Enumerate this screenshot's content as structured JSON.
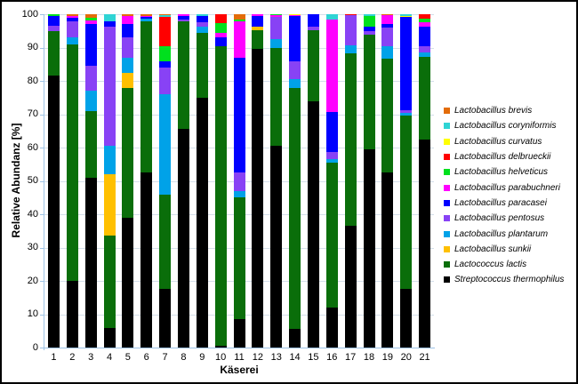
{
  "figure": {
    "ylabel": "Relative Abundanz [%]",
    "xlabel": "Käserei"
  },
  "style": {
    "background": "#FFFFFF",
    "frame_border": "#000000",
    "grid_color": "#D4DFE9",
    "axis_color": "#9DC3E6",
    "text_color": "#000000"
  },
  "chart_data": {
    "type": "bar",
    "stacked": true,
    "title": "",
    "xlabel": "Käserei",
    "ylabel": "Relative Abundanz [%]",
    "ylim": [
      0,
      100
    ],
    "y_ticks": [
      0,
      10,
      20,
      30,
      40,
      50,
      60,
      70,
      80,
      90,
      100
    ],
    "grid": "horizontal",
    "legend_position": "right",
    "categories": [
      "1",
      "2",
      "3",
      "4",
      "5",
      "6",
      "7",
      "8",
      "9",
      "10",
      "11",
      "12",
      "13",
      "14",
      "15",
      "16",
      "17",
      "18",
      "19",
      "20",
      "21"
    ],
    "stack_note": "series listed in legend order (top of stack first); bars stack bottom-to-top in reverse of this list",
    "series": [
      {
        "name": "Lactobacillus brevis",
        "color": "#E36C09",
        "values": [
          0,
          0.5,
          1,
          0,
          0.4,
          0.4,
          0.3,
          0,
          0,
          0,
          1.5,
          0,
          0,
          0,
          0,
          0,
          0,
          0,
          0.3,
          0,
          0
        ]
      },
      {
        "name": "Lactobacillus coryniformis",
        "color": "#2FD4D4",
        "values": [
          0,
          0,
          0,
          2,
          0,
          0,
          0.4,
          0,
          0.5,
          0,
          0,
          0,
          0,
          0,
          0,
          1.5,
          0,
          0.5,
          0,
          0.4,
          0
        ]
      },
      {
        "name": "Lactobacillus curvatus",
        "color": "#FFFF00",
        "values": [
          0,
          0,
          0,
          0,
          0,
          0,
          0,
          0,
          0,
          0,
          0,
          0,
          0,
          0.3,
          0,
          0,
          0,
          0,
          0,
          0.4,
          0
        ]
      },
      {
        "name": "Lactobacillus delbrueckii",
        "color": "#FF0000",
        "values": [
          0,
          0,
          0,
          0,
          0,
          0,
          8.9,
          0,
          0,
          2.6,
          0,
          0,
          0,
          0,
          0,
          0,
          0.3,
          0,
          0,
          0,
          1.2
        ]
      },
      {
        "name": "Lactobacillus helveticus",
        "color": "#00E01E",
        "values": [
          0.5,
          0,
          0.8,
          0,
          0,
          0,
          4.4,
          0,
          0,
          3,
          0.5,
          0,
          0.3,
          0,
          0,
          0,
          0,
          3.3,
          0,
          0,
          1.3
        ]
      },
      {
        "name": "Lactobacillus parabuchneri",
        "color": "#FF00FF",
        "values": [
          0,
          0.5,
          1,
          0,
          2.6,
          0.3,
          0,
          0.5,
          0,
          1.4,
          11,
          0.4,
          0.4,
          0.3,
          0,
          27.7,
          0,
          0,
          2.6,
          0,
          1.1
        ]
      },
      {
        "name": "Lactobacillus paracasei",
        "color": "#0000FF",
        "values": [
          3,
          1,
          12.7,
          1.6,
          4,
          0.6,
          2,
          1,
          2,
          2.5,
          34.5,
          3.4,
          0,
          13.4,
          3.8,
          12,
          0,
          1.3,
          1.2,
          27.9,
          6
        ]
      },
      {
        "name": "Lactobacillus pentosus",
        "color": "#8842F5",
        "values": [
          1.5,
          5,
          7.5,
          35.9,
          6,
          0,
          8,
          0.5,
          1.1,
          0,
          5.5,
          0,
          6.8,
          5.4,
          0.9,
          2.3,
          8.9,
          0.9,
          5.5,
          0.9,
          1.8
        ]
      },
      {
        "name": "Lactobacillus plantarum",
        "color": "#00A2E8",
        "values": [
          0,
          2,
          6,
          8.5,
          4.5,
          0.8,
          30,
          0,
          2,
          0,
          2,
          0,
          2.5,
          2.6,
          0,
          1,
          2.6,
          0,
          3.6,
          0.9,
          1.3
        ]
      },
      {
        "name": "Lactobacillus sunkii",
        "color": "#FFC000",
        "values": [
          0,
          0,
          0,
          18.5,
          4.5,
          0,
          0,
          0,
          0,
          0,
          0,
          0.9,
          0,
          0,
          0,
          0,
          0,
          0,
          0,
          0,
          0
        ]
      },
      {
        "name": "Lactococcus lactis",
        "color": "#0A6E0A",
        "values": [
          13.5,
          71,
          20,
          27.5,
          39,
          45.4,
          28.5,
          32.5,
          19.4,
          90,
          36.5,
          5.8,
          29.5,
          72.5,
          21.3,
          43.5,
          51.7,
          34.5,
          34.3,
          52,
          24.8
        ]
      },
      {
        "name": "Streptococcus thermophilus",
        "color": "#000000",
        "values": [
          81.5,
          20,
          51,
          6,
          39,
          52.5,
          17.5,
          65.5,
          75,
          0.5,
          8.5,
          89.5,
          60.5,
          5.5,
          74,
          12,
          36.5,
          59.5,
          52.5,
          17.5,
          62.5
        ]
      }
    ]
  }
}
